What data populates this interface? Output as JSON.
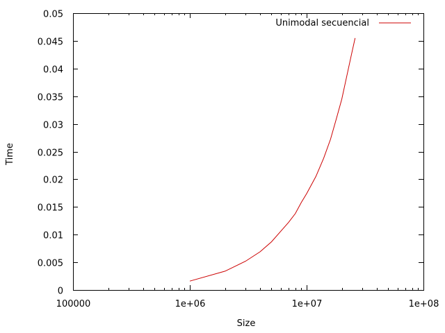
{
  "chart_data": {
    "type": "line",
    "title": "",
    "xlabel": "Size",
    "ylabel": "Time",
    "xscale": "log",
    "xlim": [
      100000,
      100000000
    ],
    "ylim": [
      0,
      0.05
    ],
    "xticks": [
      100000,
      1000000,
      10000000,
      100000000
    ],
    "xtick_labels": [
      "100000",
      "1e+06",
      "1e+07",
      "1e+08"
    ],
    "yticks": [
      0,
      0.005,
      0.01,
      0.015,
      0.02,
      0.025,
      0.03,
      0.035,
      0.04,
      0.045,
      0.05
    ],
    "ytick_labels": [
      "0",
      "0.005",
      "0.01",
      "0.015",
      "0.02",
      "0.025",
      "0.03",
      "0.035",
      "0.04",
      "0.045",
      "0.05"
    ],
    "grid": false,
    "legend_position": "top-right",
    "series": [
      {
        "name": "Unimodal secuencial",
        "color": "#cc0000",
        "x": [
          1000000,
          2000000,
          3000000,
          4000000,
          5000000,
          6000000,
          7000000,
          8000000,
          9000000,
          10000000,
          12000000,
          14000000,
          16000000,
          18000000,
          20000000,
          22000000,
          24000000,
          26000000
        ],
        "y": [
          0.0016,
          0.0034,
          0.0052,
          0.0069,
          0.0087,
          0.0106,
          0.0122,
          0.0138,
          0.0158,
          0.0174,
          0.0205,
          0.0238,
          0.0272,
          0.031,
          0.0345,
          0.0385,
          0.0422,
          0.0455
        ]
      }
    ]
  }
}
